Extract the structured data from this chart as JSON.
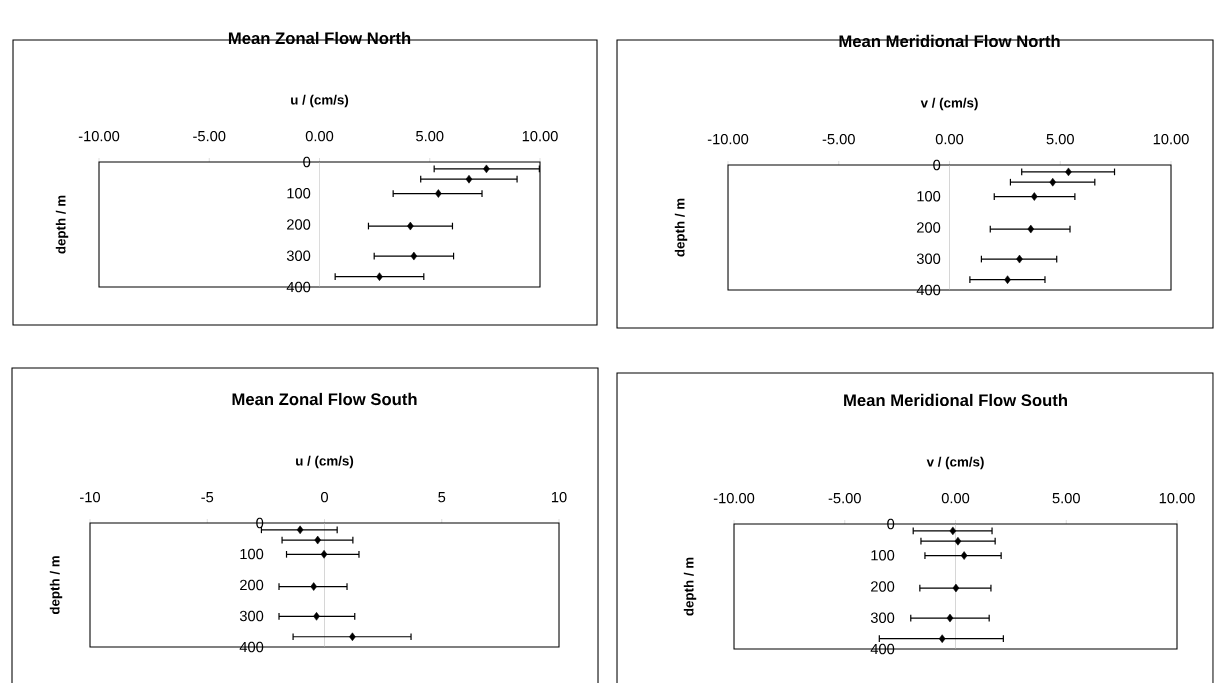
{
  "chart_data": [
    {
      "type": "scatter",
      "title": "Mean Zonal Flow North",
      "xlabel": "u / (cm/s)",
      "ylabel": "depth / m",
      "marker": "diamond",
      "xlim": [
        -10,
        10
      ],
      "ylim": [
        400,
        0
      ],
      "xticks": [
        {
          "value": -10,
          "label": "-10.00"
        },
        {
          "value": -5,
          "label": "-5.00"
        },
        {
          "value": 0,
          "label": "0.00"
        },
        {
          "value": 5,
          "label": "5.00"
        },
        {
          "value": 10,
          "label": "10.00"
        }
      ],
      "yticks": [
        0,
        100,
        200,
        300,
        400
      ],
      "series": [
        {
          "color": "#000000",
          "x": [
            7.57,
            6.78,
            5.39,
            4.12,
            4.28,
            2.72
          ],
          "values": [
            22,
            55,
            101,
            205,
            301,
            367
          ],
          "xerrors": [
            [
              5.2,
              9.97
            ],
            [
              4.59,
              8.96
            ],
            [
              3.34,
              7.37
            ],
            [
              2.22,
              6.03
            ],
            [
              2.48,
              6.08
            ],
            [
              0.71,
              4.73
            ]
          ]
        }
      ]
    },
    {
      "type": "scatter",
      "title": "Mean Meridional Flow North",
      "xlabel": "v / (cm/s)",
      "ylabel": "depth / m",
      "marker": "diamond",
      "xlim": [
        -10,
        10
      ],
      "ylim": [
        400,
        0
      ],
      "xticks": [
        {
          "value": -10,
          "label": "-10.00"
        },
        {
          "value": -5,
          "label": "-5.00"
        },
        {
          "value": 0,
          "label": "0.00"
        },
        {
          "value": 5,
          "label": "5.00"
        },
        {
          "value": 10,
          "label": "10.00"
        }
      ],
      "yticks": [
        0,
        100,
        200,
        300,
        400
      ],
      "series": [
        {
          "color": "#000000",
          "x": [
            5.37,
            4.66,
            3.83,
            3.67,
            3.16,
            2.62
          ],
          "values": [
            22,
            55,
            101,
            205,
            301,
            367
          ],
          "xerrors": [
            [
              3.26,
              7.45
            ],
            [
              2.75,
              6.56
            ],
            [
              2.02,
              5.66
            ],
            [
              1.84,
              5.44
            ],
            [
              1.44,
              4.84
            ],
            [
              0.92,
              4.31
            ]
          ]
        }
      ]
    },
    {
      "type": "scatter",
      "title": "Mean Zonal Flow South",
      "xlabel": "u / (cm/s)",
      "ylabel": "depth / m",
      "marker": "diamond",
      "xlim": [
        -10,
        10
      ],
      "ylim": [
        400,
        0
      ],
      "xticks": [
        -10,
        -5,
        0,
        5,
        10
      ],
      "yticks": [
        0,
        100,
        200,
        300,
        400
      ],
      "series": [
        {
          "color": "#000000",
          "x": [
            -1.04,
            -0.29,
            -0.02,
            -0.46,
            -0.34,
            1.19
          ],
          "values": [
            22,
            55,
            101,
            205,
            301,
            367
          ],
          "xerrors": [
            [
              -2.69,
              0.54
            ],
            [
              -1.81,
              1.21
            ],
            [
              -1.62,
              1.47
            ],
            [
              -1.94,
              0.96
            ],
            [
              -1.94,
              1.29
            ],
            [
              -1.34,
              3.69
            ]
          ]
        }
      ]
    },
    {
      "type": "scatter",
      "title": "Mean Meridional Flow South",
      "xlabel": "v / (cm/s)",
      "ylabel": "depth / m",
      "marker": "diamond",
      "xlim": [
        -10,
        10
      ],
      "ylim": [
        400,
        0
      ],
      "xticks": [
        {
          "value": -10,
          "label": "-10.00"
        },
        {
          "value": -5,
          "label": "-5.00"
        },
        {
          "value": 0,
          "label": "0.00"
        },
        {
          "value": 5,
          "label": "5.00"
        },
        {
          "value": 10,
          "label": "10.00"
        }
      ],
      "yticks": [
        0,
        100,
        200,
        300,
        400
      ],
      "series": [
        {
          "color": "#000000",
          "x": [
            -0.12,
            0.11,
            0.39,
            0.02,
            -0.25,
            -0.6
          ],
          "values": [
            22,
            55,
            101,
            205,
            301,
            367
          ],
          "xerrors": [
            [
              -1.91,
              1.65
            ],
            [
              -1.56,
              1.79
            ],
            [
              -1.38,
              2.06
            ],
            [
              -1.61,
              1.6
            ],
            [
              -2.02,
              1.52
            ],
            [
              -3.44,
              2.16
            ]
          ]
        }
      ]
    }
  ]
}
